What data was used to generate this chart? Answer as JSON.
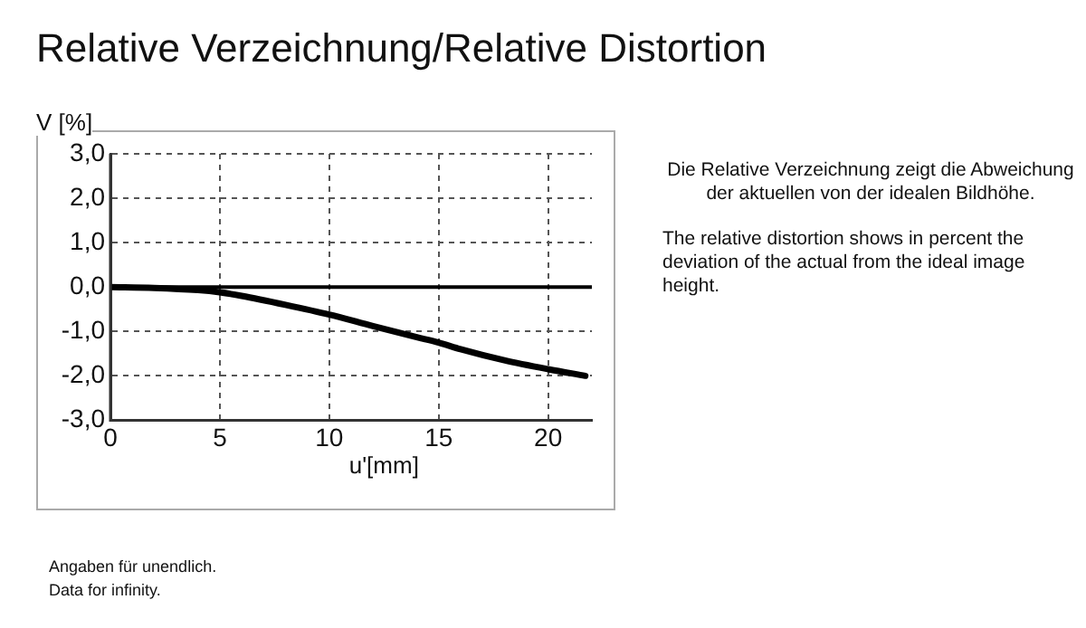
{
  "chart_data": {
    "type": "line",
    "title": "Relative Verzeichnung/Relative Distortion",
    "xlabel": "u'[mm]",
    "ylabel": "V [%]",
    "x": [
      0,
      2,
      4,
      5,
      6,
      8,
      10,
      12,
      14,
      15,
      16,
      18,
      20,
      21.7
    ],
    "series": [
      {
        "color": "#000000",
        "values": [
          0,
          -0.02,
          -0.07,
          -0.12,
          -0.2,
          -0.4,
          -0.62,
          -0.88,
          -1.13,
          -1.25,
          -1.4,
          -1.65,
          -1.85,
          -2.0
        ]
      }
    ],
    "xlim": [
      0,
      22
    ],
    "xticks": [
      0,
      5,
      10,
      15,
      20
    ],
    "ylim": [
      -3,
      3
    ],
    "yticks": [
      {
        "value": -3,
        "label": "-3,0"
      },
      {
        "value": -2,
        "label": "-2,0"
      },
      {
        "value": -1,
        "label": "-1,0"
      },
      {
        "value": 0,
        "label": "0,0"
      },
      {
        "value": 1,
        "label": "1,0"
      },
      {
        "value": 2,
        "label": "2,0"
      },
      {
        "value": 3,
        "label": "3,0"
      }
    ],
    "ref_lines": [
      {
        "axis": "y",
        "value": 0,
        "color": "#000000",
        "line_style": "solid"
      }
    ],
    "grid": true,
    "legend": false,
    "marker": "none",
    "line_style": "solid",
    "annotations": [
      "Die Relative Verzeichnung zeigt die Abweichung der aktuellen von der idealen Bildhöhe.",
      "The relative distortion shows in percent the deviation of the actual from the ideal image height.",
      "Angaben für unendlich.",
      "Data for infinity."
    ]
  }
}
